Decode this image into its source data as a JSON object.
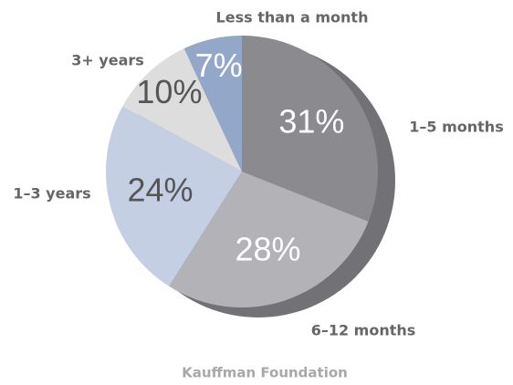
{
  "chart_data": {
    "type": "pie",
    "categories": [
      "1–5 months",
      "6–12 months",
      "1–3 years",
      "3+ years",
      "Less than a month"
    ],
    "values": [
      31,
      28,
      24,
      10,
      7
    ],
    "value_labels": [
      "31%",
      "28%",
      "24%",
      "10%",
      "7%"
    ],
    "colors": [
      "#8a8a8f",
      "#b2b2b7",
      "#c4cfe3",
      "#dddddd",
      "#93a7c9"
    ],
    "source": "Kauffman Foundation"
  }
}
